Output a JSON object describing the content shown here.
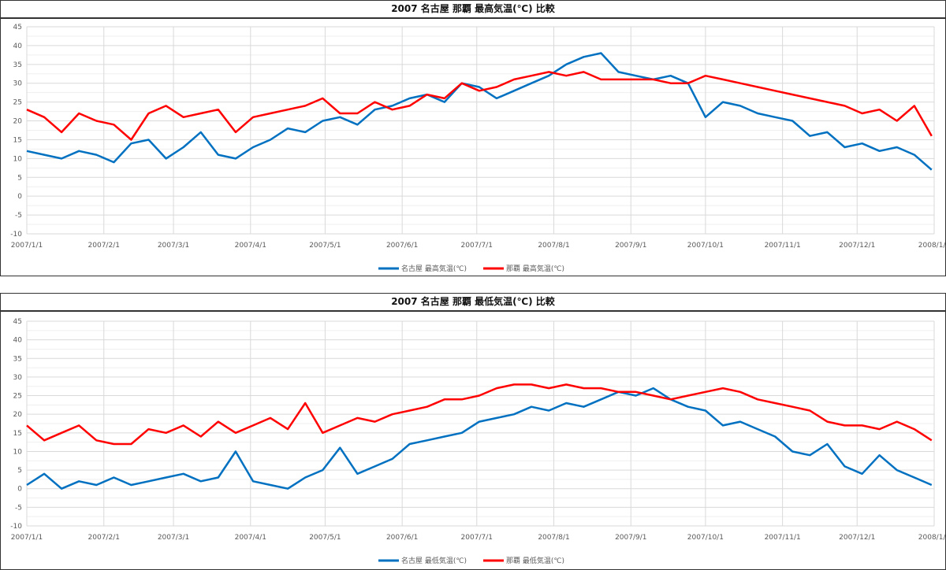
{
  "chart_data": [
    {
      "type": "line",
      "title": "2007 名古屋 那覇 最高気温(℃) 比較",
      "xlabel": "",
      "ylabel": "",
      "ylim": [
        -10,
        45
      ],
      "yticks": [
        "45",
        "40",
        "35",
        "30",
        "25",
        "20",
        "15",
        "10",
        "5",
        "0",
        "-5",
        "-10"
      ],
      "xticks": [
        "2007/1/1",
        "2007/2/1",
        "2007/3/1",
        "2007/4/1",
        "2007/5/1",
        "2007/6/1",
        "2007/7/1",
        "2007/8/1",
        "2007/9/1",
        "2007/10/1",
        "2007/11/1",
        "2007/12/1",
        "2008/1/1"
      ],
      "grid": true,
      "legend": "bottom",
      "x": [
        "2007-01-01",
        "2007-01-08",
        "2007-01-15",
        "2007-01-22",
        "2007-01-29",
        "2007-02-05",
        "2007-02-12",
        "2007-02-19",
        "2007-02-26",
        "2007-03-05",
        "2007-03-12",
        "2007-03-19",
        "2007-03-26",
        "2007-04-02",
        "2007-04-09",
        "2007-04-16",
        "2007-04-23",
        "2007-04-30",
        "2007-05-07",
        "2007-05-14",
        "2007-05-21",
        "2007-05-28",
        "2007-06-04",
        "2007-06-11",
        "2007-06-18",
        "2007-06-25",
        "2007-07-02",
        "2007-07-09",
        "2007-07-16",
        "2007-07-23",
        "2007-07-30",
        "2007-08-06",
        "2007-08-13",
        "2007-08-20",
        "2007-08-27",
        "2007-09-03",
        "2007-09-10",
        "2007-09-17",
        "2007-09-24",
        "2007-10-01",
        "2007-10-08",
        "2007-10-15",
        "2007-10-22",
        "2007-10-29",
        "2007-11-05",
        "2007-11-12",
        "2007-11-19",
        "2007-11-26",
        "2007-12-03",
        "2007-12-10",
        "2007-12-17",
        "2007-12-24",
        "2007-12-31"
      ],
      "series": [
        {
          "name": "名古屋 最高気温(℃)",
          "color": "#0070c0",
          "values": [
            12,
            11,
            10,
            12,
            11,
            9,
            14,
            15,
            10,
            13,
            17,
            11,
            10,
            13,
            15,
            18,
            17,
            20,
            21,
            19,
            23,
            24,
            26,
            27,
            25,
            30,
            29,
            26,
            28,
            30,
            32,
            35,
            37,
            38,
            33,
            32,
            31,
            32,
            30,
            21,
            25,
            24,
            22,
            21,
            20,
            16,
            17,
            13,
            14,
            12,
            13,
            11,
            7
          ]
        },
        {
          "name": "那覇 最高気温(℃)",
          "color": "#ff0000",
          "values": [
            23,
            21,
            17,
            22,
            20,
            19,
            15,
            22,
            24,
            21,
            22,
            23,
            17,
            21,
            22,
            23,
            24,
            26,
            22,
            22,
            25,
            23,
            24,
            27,
            26,
            30,
            28,
            29,
            31,
            32,
            33,
            32,
            33,
            31,
            31,
            31,
            31,
            30,
            30,
            32,
            31,
            30,
            29,
            28,
            27,
            26,
            25,
            24,
            22,
            23,
            20,
            24,
            16
          ]
        }
      ]
    },
    {
      "type": "line",
      "title": "2007 名古屋 那覇 最低気温(℃) 比較",
      "xlabel": "",
      "ylabel": "",
      "ylim": [
        -10,
        45
      ],
      "yticks": [
        "45",
        "40",
        "35",
        "30",
        "25",
        "20",
        "15",
        "10",
        "5",
        "0",
        "-5",
        "-10"
      ],
      "xticks": [
        "2007/1/1",
        "2007/2/1",
        "2007/3/1",
        "2007/4/1",
        "2007/5/1",
        "2007/6/1",
        "2007/7/1",
        "2007/8/1",
        "2007/9/1",
        "2007/10/1",
        "2007/11/1",
        "2007/12/1",
        "2008/1/1"
      ],
      "grid": true,
      "legend": "bottom",
      "x": [
        "2007-01-01",
        "2007-01-08",
        "2007-01-15",
        "2007-01-22",
        "2007-01-29",
        "2007-02-05",
        "2007-02-12",
        "2007-02-19",
        "2007-02-26",
        "2007-03-05",
        "2007-03-12",
        "2007-03-19",
        "2007-03-26",
        "2007-04-02",
        "2007-04-09",
        "2007-04-16",
        "2007-04-23",
        "2007-04-30",
        "2007-05-07",
        "2007-05-14",
        "2007-05-21",
        "2007-05-28",
        "2007-06-04",
        "2007-06-11",
        "2007-06-18",
        "2007-06-25",
        "2007-07-02",
        "2007-07-09",
        "2007-07-16",
        "2007-07-23",
        "2007-07-30",
        "2007-08-06",
        "2007-08-13",
        "2007-08-20",
        "2007-08-27",
        "2007-09-03",
        "2007-09-10",
        "2007-09-17",
        "2007-09-24",
        "2007-10-01",
        "2007-10-08",
        "2007-10-15",
        "2007-10-22",
        "2007-10-29",
        "2007-11-05",
        "2007-11-12",
        "2007-11-19",
        "2007-11-26",
        "2007-12-03",
        "2007-12-10",
        "2007-12-17",
        "2007-12-24",
        "2007-12-31"
      ],
      "series": [
        {
          "name": "名古屋 最低気温(℃)",
          "color": "#0070c0",
          "values": [
            1,
            4,
            0,
            2,
            1,
            3,
            1,
            2,
            3,
            4,
            2,
            3,
            10,
            2,
            1,
            0,
            3,
            5,
            11,
            4,
            6,
            8,
            12,
            13,
            14,
            15,
            18,
            19,
            20,
            22,
            21,
            23,
            22,
            24,
            26,
            25,
            27,
            24,
            22,
            21,
            17,
            18,
            16,
            14,
            10,
            9,
            12,
            6,
            4,
            9,
            5,
            3,
            1
          ]
        },
        {
          "name": "那覇 最低気温(℃)",
          "color": "#ff0000",
          "values": [
            17,
            13,
            15,
            17,
            13,
            12,
            12,
            16,
            15,
            17,
            14,
            18,
            15,
            17,
            19,
            16,
            23,
            15,
            17,
            19,
            18,
            20,
            21,
            22,
            24,
            24,
            25,
            27,
            28,
            28,
            27,
            28,
            27,
            27,
            26,
            26,
            25,
            24,
            25,
            26,
            27,
            26,
            24,
            23,
            22,
            21,
            18,
            17,
            17,
            16,
            18,
            16,
            13
          ]
        }
      ]
    }
  ]
}
